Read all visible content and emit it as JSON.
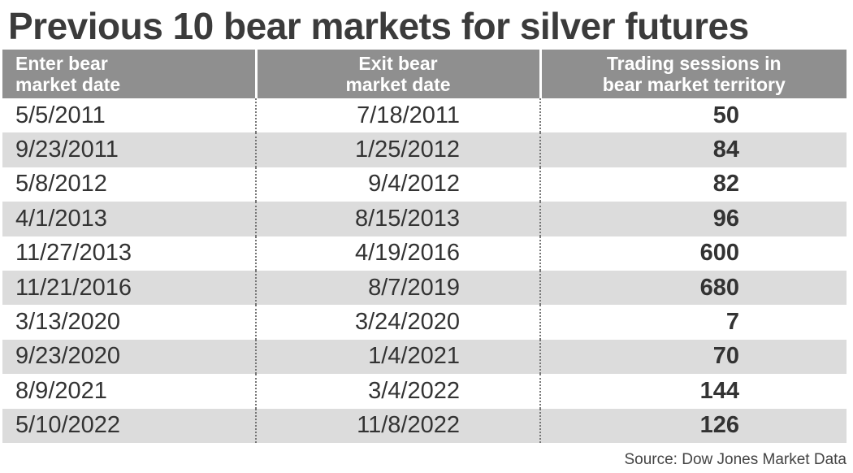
{
  "title": "Previous 10 bear markets for silver futures",
  "chart_data": {
    "type": "table",
    "title": "Previous 10 bear markets for silver futures",
    "columns": [
      [
        "Enter bear",
        "market date"
      ],
      [
        "Exit bear",
        "market date"
      ],
      [
        "Trading sessions in",
        "bear market territory"
      ]
    ],
    "rows": [
      {
        "enter": "5/5/2011",
        "exit": "7/18/2011",
        "sessions": 50
      },
      {
        "enter": "9/23/2011",
        "exit": "1/25/2012",
        "sessions": 84
      },
      {
        "enter": "5/8/2012",
        "exit": "9/4/2012",
        "sessions": 82
      },
      {
        "enter": "4/1/2013",
        "exit": "8/15/2013",
        "sessions": 96
      },
      {
        "enter": "11/27/2013",
        "exit": "4/19/2016",
        "sessions": 600
      },
      {
        "enter": "11/21/2016",
        "exit": "8/7/2019",
        "sessions": 680
      },
      {
        "enter": "3/13/2020",
        "exit": "3/24/2020",
        "sessions": 7
      },
      {
        "enter": "9/23/2020",
        "exit": "1/4/2021",
        "sessions": 70
      },
      {
        "enter": "8/9/2021",
        "exit": "3/4/2022",
        "sessions": 144
      },
      {
        "enter": "5/10/2022",
        "exit": "11/8/2022",
        "sessions": 126
      }
    ]
  },
  "source": "Source: Dow Jones Market Data",
  "colors": {
    "title": "#3b3b3b",
    "header_bg": "#8f8f8f",
    "header_text": "#ffffff",
    "stripe": "#dcdcdc"
  }
}
